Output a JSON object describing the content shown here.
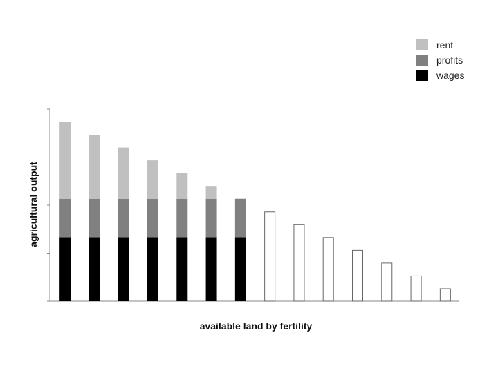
{
  "chart_data": {
    "type": "bar",
    "stacked": true,
    "title": "",
    "xlabel": "available land by fertility",
    "ylabel": "agricultural output",
    "ylim": [
      0,
      6
    ],
    "y_ticks": [
      0,
      1.5,
      3,
      4.5,
      6
    ],
    "x_tick_labels": false,
    "grid": false,
    "legend_position": "top-right",
    "categories": [
      "1",
      "2",
      "3",
      "4",
      "5",
      "6",
      "7",
      "8",
      "9",
      "10",
      "11",
      "12",
      "13",
      "14"
    ],
    "series": [
      {
        "name": "wages",
        "color": "#000000",
        "values": [
          2,
          2,
          2,
          2,
          2,
          2,
          2,
          0,
          0,
          0,
          0,
          0,
          0,
          0
        ]
      },
      {
        "name": "profits",
        "color": "#808080",
        "values": [
          1.2,
          1.2,
          1.2,
          1.2,
          1.2,
          1.2,
          1.2,
          0,
          0,
          0,
          0,
          0,
          0,
          0
        ]
      },
      {
        "name": "rent",
        "color": "#c0c0c0",
        "values": [
          2.4,
          2.0,
          1.6,
          1.2,
          0.8,
          0.4,
          0,
          0,
          0,
          0,
          0,
          0,
          0,
          0
        ]
      }
    ],
    "unused_land_output": [
      0,
      0,
      0,
      0,
      0,
      0,
      0,
      2.8,
      2.4,
      2.0,
      1.6,
      1.2,
      0.8,
      0.4
    ],
    "unused_land_style": "outline"
  },
  "legend": {
    "items": [
      {
        "label": "rent",
        "color": "#c0c0c0"
      },
      {
        "label": "profits",
        "color": "#808080"
      },
      {
        "label": "wages",
        "color": "#000000"
      }
    ]
  }
}
